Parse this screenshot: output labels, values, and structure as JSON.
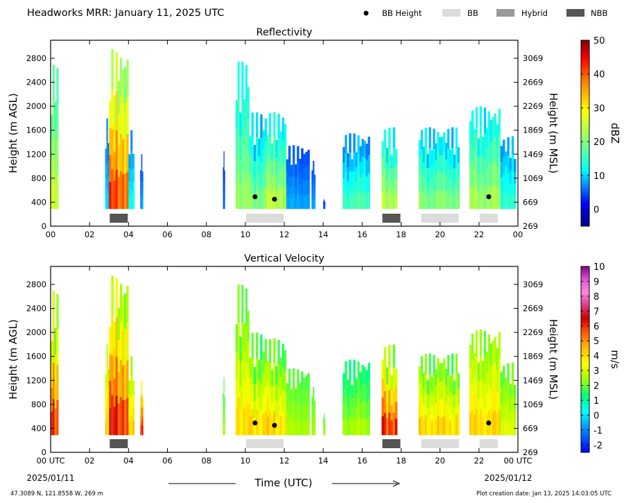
{
  "header": {
    "title": "Headworks MRR:  January 11, 2025 UTC",
    "legend": [
      {
        "label": "BB Height",
        "kind": "dot",
        "color": "#000000"
      },
      {
        "label": "BB",
        "kind": "box",
        "color": "#dcdcdc"
      },
      {
        "label": "Hybrid",
        "kind": "box",
        "color": "#999999"
      },
      {
        "label": "NBB",
        "kind": "box",
        "color": "#555555"
      }
    ]
  },
  "footer": {
    "location": "47.3089 N, 121.8558 W, 269 m",
    "creation": "Plot creation date: Jan 13, 2025 14:03:05 UTC",
    "xlabel": "Time (UTC)",
    "start_date": "2025/01/11",
    "end_date": "2025/01/12"
  },
  "chart_data": [
    {
      "type": "heatmap",
      "title": "Reflectivity",
      "ylabel": "Height (m AGL)",
      "ylabel_right": "Height (m MSL)",
      "x_ticks": [
        "00",
        "02",
        "04",
        "06",
        "08",
        "10",
        "12",
        "14",
        "16",
        "18",
        "20",
        "22",
        "00"
      ],
      "y_ticks": [
        0,
        400,
        800,
        1200,
        1600,
        2000,
        2400,
        2800
      ],
      "y_ticks_right": [
        269,
        669,
        1069,
        1469,
        1869,
        2269,
        2669,
        3069
      ],
      "xlim": [
        0,
        24
      ],
      "ylim": [
        0,
        3100
      ],
      "colorbar": {
        "label": "dBZ",
        "range": [
          -5,
          50
        ],
        "ticks": [
          0,
          10,
          20,
          30,
          40,
          50
        ]
      },
      "bb_height": [
        {
          "hour": 10.5,
          "height": 490
        },
        {
          "hour": 11.5,
          "height": 450
        },
        {
          "hour": 22.5,
          "height": 490
        }
      ],
      "bb_type_periods": [
        {
          "start": 3.0,
          "end": 4.0,
          "type": "NBB"
        },
        {
          "start": 10.0,
          "end": 12.0,
          "type": "BB"
        },
        {
          "start": 17.0,
          "end": 18.0,
          "type": "NBB"
        },
        {
          "start": 19.0,
          "end": 21.0,
          "type": "BB"
        },
        {
          "start": 22.0,
          "end": 23.0,
          "type": "BB"
        }
      ],
      "echo_segments": [
        {
          "start": 0.0,
          "end": 0.4,
          "top": 2700,
          "value": 14,
          "core": 26
        },
        {
          "start": 2.8,
          "end": 3.0,
          "top": 1800,
          "value": 5,
          "core": 10
        },
        {
          "start": 3.0,
          "end": 4.0,
          "top": 2950,
          "value": 18,
          "core": 40
        },
        {
          "start": 4.0,
          "end": 4.3,
          "top": 1600,
          "value": 6,
          "core": 12
        },
        {
          "start": 4.6,
          "end": 4.75,
          "top": 1200,
          "value": 4,
          "core": 8
        },
        {
          "start": 8.85,
          "end": 8.95,
          "top": 1250,
          "value": 3,
          "core": 6
        },
        {
          "start": 9.5,
          "end": 10.2,
          "top": 2750,
          "value": 10,
          "core": 22
        },
        {
          "start": 10.2,
          "end": 11.1,
          "top": 1900,
          "value": 7,
          "core": 20
        },
        {
          "start": 11.1,
          "end": 12.1,
          "top": 1900,
          "value": 9,
          "core": 24
        },
        {
          "start": 12.1,
          "end": 13.3,
          "top": 1350,
          "value": 4,
          "core": 8
        },
        {
          "start": 13.4,
          "end": 13.6,
          "top": 1100,
          "value": 4,
          "core": 8
        },
        {
          "start": 14.0,
          "end": 14.1,
          "top": 450,
          "value": 3,
          "core": 5
        },
        {
          "start": 15.0,
          "end": 16.4,
          "top": 1550,
          "value": 5,
          "core": 16
        },
        {
          "start": 17.0,
          "end": 17.8,
          "top": 1650,
          "value": 9,
          "core": 24
        },
        {
          "start": 18.9,
          "end": 21.0,
          "top": 1650,
          "value": 7,
          "core": 20
        },
        {
          "start": 21.5,
          "end": 23.1,
          "top": 2000,
          "value": 9,
          "core": 22
        },
        {
          "start": 23.1,
          "end": 23.9,
          "top": 1500,
          "value": 6,
          "core": 14
        }
      ]
    },
    {
      "type": "heatmap",
      "title": "Vertical Velocity",
      "ylabel": "Height (m AGL)",
      "ylabel_right": "Height (m MSL)",
      "x_ticks": [
        "00 UTC",
        "02",
        "04",
        "06",
        "08",
        "10",
        "12",
        "14",
        "16",
        "18",
        "20",
        "22",
        "00 UTC"
      ],
      "y_ticks": [
        0,
        400,
        800,
        1200,
        1600,
        2000,
        2400,
        2800
      ],
      "y_ticks_right": [
        269,
        669,
        1069,
        1469,
        1869,
        2269,
        2669,
        3069
      ],
      "xlim": [
        0,
        24
      ],
      "ylim": [
        0,
        3100
      ],
      "colorbar": {
        "label": "m/s",
        "range": [
          -2.5,
          10
        ],
        "ticks": [
          -2,
          -1,
          0,
          1,
          2,
          3,
          4,
          5,
          6,
          7,
          8,
          9,
          10
        ]
      },
      "bb_height": [
        {
          "hour": 10.5,
          "height": 490
        },
        {
          "hour": 11.5,
          "height": 450
        },
        {
          "hour": 22.5,
          "height": 490
        }
      ],
      "bb_type_periods": [
        {
          "start": 3.0,
          "end": 4.0,
          "type": "NBB"
        },
        {
          "start": 10.0,
          "end": 12.0,
          "type": "BB"
        },
        {
          "start": 17.0,
          "end": 18.0,
          "type": "NBB"
        },
        {
          "start": 19.0,
          "end": 21.0,
          "type": "BB"
        },
        {
          "start": 22.0,
          "end": 23.0,
          "type": "BB"
        }
      ],
      "echo_segments": [
        {
          "start": 0.0,
          "end": 0.4,
          "top": 2700,
          "value": 1.6,
          "core": 6
        },
        {
          "start": 2.8,
          "end": 3.0,
          "top": 1800,
          "value": 2.2,
          "core": 4
        },
        {
          "start": 3.0,
          "end": 4.0,
          "top": 2950,
          "value": 1.8,
          "core": 6
        },
        {
          "start": 4.0,
          "end": 4.3,
          "top": 1600,
          "value": 2.0,
          "core": 4
        },
        {
          "start": 4.6,
          "end": 4.75,
          "top": 1200,
          "value": 3.0,
          "core": 6
        },
        {
          "start": 8.85,
          "end": 8.95,
          "top": 1250,
          "value": 1.6,
          "core": 2.5
        },
        {
          "start": 9.5,
          "end": 10.2,
          "top": 2800,
          "value": 1.5,
          "core": 4
        },
        {
          "start": 10.2,
          "end": 11.1,
          "top": 2000,
          "value": 1.2,
          "core": 4
        },
        {
          "start": 11.1,
          "end": 12.1,
          "top": 1900,
          "value": 1.3,
          "core": 4
        },
        {
          "start": 12.1,
          "end": 13.3,
          "top": 1400,
          "value": 1.7,
          "core": 2.5
        },
        {
          "start": 13.4,
          "end": 13.6,
          "top": 1100,
          "value": 1.8,
          "core": 2.5
        },
        {
          "start": 14.0,
          "end": 14.1,
          "top": 650,
          "value": 1.8,
          "core": 2.5
        },
        {
          "start": 15.0,
          "end": 16.4,
          "top": 1550,
          "value": 1.0,
          "core": 2.5
        },
        {
          "start": 17.0,
          "end": 17.8,
          "top": 1800,
          "value": 1.6,
          "core": 6
        },
        {
          "start": 18.9,
          "end": 21.0,
          "top": 1650,
          "value": 1.4,
          "core": 4
        },
        {
          "start": 21.5,
          "end": 23.1,
          "top": 2050,
          "value": 1.8,
          "core": 4
        },
        {
          "start": 23.1,
          "end": 23.9,
          "top": 1500,
          "value": 1.6,
          "core": 3
        }
      ]
    }
  ]
}
